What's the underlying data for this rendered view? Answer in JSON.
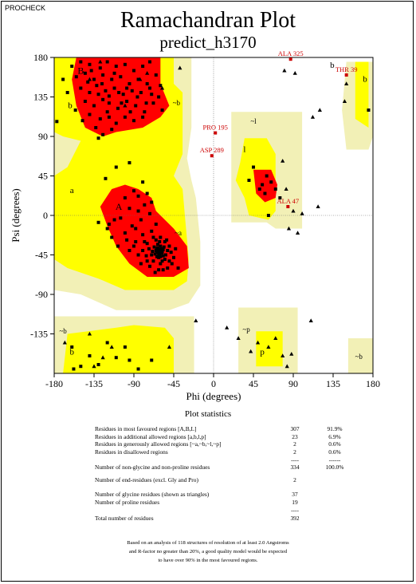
{
  "header": {
    "program": "PROCHECK",
    "title": "Ramachandran Plot",
    "subtitle": "predict_h3170"
  },
  "chart_data": {
    "type": "scatter",
    "title": "Ramachandran Plot",
    "subtitle": "predict_h3170",
    "xlabel": "Phi (degrees)",
    "ylabel": "Psi (degrees)",
    "xlim": [
      -180,
      180
    ],
    "ylim": [
      -180,
      180
    ],
    "x_ticks": [
      "-180",
      "-135",
      "-90",
      "-45",
      "0",
      "45",
      "90",
      "135",
      "180"
    ],
    "y_ticks": [
      "180",
      "135",
      "90",
      "45",
      "0",
      "-45",
      "-90",
      "-135"
    ],
    "colors": {
      "most_favoured": "#ff0000",
      "additional_allowed": "#ffff00",
      "generously_allowed": "#f2f0b6",
      "disallowed": "#ffffff",
      "points": "#000000",
      "outlier_labels": "#cc0000"
    },
    "region_labels": [
      {
        "text": "B",
        "phi": -150,
        "psi": 165
      },
      {
        "text": "b",
        "phi": -162,
        "psi": 126
      },
      {
        "text": "~b",
        "phi": -42,
        "psi": 129
      },
      {
        "text": "b",
        "phi": 134,
        "psi": 172
      },
      {
        "text": "b",
        "phi": 171,
        "psi": 156
      },
      {
        "text": "~l",
        "phi": 45,
        "psi": 108
      },
      {
        "text": "l",
        "phi": 35,
        "psi": 76
      },
      {
        "text": "a",
        "phi": -160,
        "psi": 29
      },
      {
        "text": "A",
        "phi": -107,
        "psi": 10
      },
      {
        "text": "~a",
        "phi": -40,
        "psi": -19
      },
      {
        "text": "~b",
        "phi": -170,
        "psi": -131
      },
      {
        "text": "b",
        "phi": -160,
        "psi": -155
      },
      {
        "text": "~p",
        "phi": 37,
        "psi": -129
      },
      {
        "text": "p",
        "phi": 55,
        "psi": -155
      },
      {
        "text": "~b",
        "phi": 164,
        "psi": -160
      }
    ],
    "outliers": [
      {
        "label": "ALA 325",
        "phi": 87,
        "psi": 178
      },
      {
        "label": "THR 39",
        "phi": 150,
        "psi": 160
      },
      {
        "label": "PRO 195",
        "phi": 2,
        "psi": 94
      },
      {
        "label": "ASP 289",
        "phi": -2,
        "psi": 68
      },
      {
        "label": "ALA 47",
        "phi": 84,
        "psi": 10
      }
    ],
    "series": [
      {
        "name": "Non-glycine residues",
        "marker": "square",
        "points": [
          [
            -160,
            170
          ],
          [
            -150,
            175
          ],
          [
            -140,
            172
          ],
          [
            -128,
            168
          ],
          [
            -120,
            175
          ],
          [
            -110,
            170
          ],
          [
            -100,
            172
          ],
          [
            -90,
            165
          ],
          [
            -80,
            170
          ],
          [
            -72,
            175
          ],
          [
            -155,
            158
          ],
          [
            -145,
            162
          ],
          [
            -135,
            155
          ],
          [
            -125,
            160
          ],
          [
            -115,
            155
          ],
          [
            -105,
            158
          ],
          [
            -95,
            150
          ],
          [
            -85,
            155
          ],
          [
            -75,
            150
          ],
          [
            -65,
            160
          ],
          [
            -150,
            145
          ],
          [
            -140,
            140
          ],
          [
            -132,
            148
          ],
          [
            -122,
            142
          ],
          [
            -112,
            145
          ],
          [
            -102,
            138
          ],
          [
            -92,
            142
          ],
          [
            -82,
            140
          ],
          [
            -72,
            145
          ],
          [
            -62,
            135
          ],
          [
            -145,
            130
          ],
          [
            -135,
            125
          ],
          [
            -125,
            132
          ],
          [
            -118,
            128
          ],
          [
            -108,
            122
          ],
          [
            -98,
            130
          ],
          [
            -88,
            125
          ],
          [
            -78,
            118
          ],
          [
            -68,
            128
          ],
          [
            -58,
            120
          ],
          [
            -140,
            115
          ],
          [
            -128,
            110
          ],
          [
            -118,
            112
          ],
          [
            -110,
            105
          ],
          [
            -100,
            112
          ],
          [
            -90,
            108
          ],
          [
            -80,
            112
          ],
          [
            -115,
            98
          ],
          [
            -125,
            92
          ],
          [
            -130,
            88
          ],
          [
            -138,
            165
          ],
          [
            -126,
            150
          ],
          [
            -112,
            162
          ],
          [
            -98,
            145
          ],
          [
            -86,
            135
          ],
          [
            -142,
            152
          ],
          [
            -130,
            138
          ],
          [
            -120,
            118
          ],
          [
            -104,
            128
          ],
          [
            -94,
            118
          ],
          [
            -165,
            140
          ],
          [
            -170,
            155
          ],
          [
            -156,
            120
          ],
          [
            -148,
            108
          ],
          [
            -133,
            100
          ],
          [
            -70,
            138
          ],
          [
            -60,
            148
          ],
          [
            -76,
            128
          ],
          [
            -107,
            140
          ],
          [
            -118,
            136
          ],
          [
            -177,
            107
          ],
          [
            -95,
            60
          ],
          [
            -110,
            55
          ],
          [
            -122,
            42
          ],
          [
            -80,
            38
          ],
          [
            -100,
            20
          ],
          [
            -95,
            8
          ],
          [
            -105,
            -3
          ],
          [
            -118,
            -10
          ],
          [
            -130,
            -8
          ],
          [
            -85,
            22
          ],
          [
            -90,
            28
          ],
          [
            -75,
            25
          ],
          [
            -78,
            12
          ],
          [
            -70,
            15
          ],
          [
            -85,
            5
          ],
          [
            -72,
            2
          ],
          [
            -82,
            -5
          ],
          [
            -92,
            -12
          ],
          [
            -100,
            -20
          ],
          [
            -65,
            -10
          ],
          [
            -70,
            -18
          ],
          [
            -80,
            -22
          ],
          [
            -88,
            -30
          ],
          [
            -75,
            -32
          ],
          [
            -60,
            -25
          ],
          [
            -55,
            -30
          ],
          [
            -60,
            -35
          ],
          [
            -65,
            -40
          ],
          [
            -70,
            -45
          ],
          [
            -58,
            -42
          ],
          [
            -62,
            -48
          ],
          [
            -68,
            -52
          ],
          [
            -55,
            -50
          ],
          [
            -52,
            -40
          ],
          [
            -64,
            -38
          ],
          [
            -66,
            -44
          ],
          [
            -60,
            -55
          ],
          [
            -57,
            -46
          ],
          [
            -63,
            -33
          ],
          [
            -62,
            -42
          ],
          [
            -59,
            -38
          ],
          [
            -61,
            -45
          ],
          [
            -64,
            -47
          ],
          [
            -56,
            -36
          ],
          [
            -67,
            -36
          ],
          [
            -54,
            -45
          ],
          [
            -69,
            -41
          ],
          [
            -58,
            -52
          ],
          [
            -65,
            -28
          ],
          [
            -73,
            -38
          ],
          [
            -76,
            -46
          ],
          [
            -50,
            -35
          ],
          [
            -48,
            -42
          ],
          [
            -53,
            -28
          ],
          [
            -80,
            -40
          ],
          [
            -85,
            -45
          ],
          [
            -72,
            -58
          ],
          [
            -62,
            -62
          ],
          [
            -95,
            -40
          ],
          [
            -108,
            -35
          ],
          [
            -115,
            -25
          ],
          [
            -120,
            -15
          ],
          [
            -112,
            -5
          ],
          [
            -45,
            -48
          ],
          [
            -40,
            -60
          ],
          [
            -47,
            -55
          ],
          [
            -78,
            -30
          ],
          [
            -88,
            -15
          ],
          [
            -68,
            -25
          ],
          [
            -52,
            -60
          ],
          [
            -57,
            -62
          ],
          [
            -66,
            -65
          ],
          [
            -50,
            -52
          ],
          [
            -43,
            -38
          ],
          [
            -61,
            -30
          ],
          [
            -75,
            -52
          ],
          [
            -82,
            -55
          ],
          [
            -90,
            -35
          ],
          [
            -98,
            -28
          ],
          [
            -61,
            -41
          ],
          [
            -63,
            -40
          ],
          [
            -59,
            -43
          ],
          [
            -60,
            -39
          ],
          [
            -62,
            -44
          ],
          [
            -58,
            -40
          ],
          [
            -64,
            -42
          ],
          [
            -57,
            -39
          ],
          [
            -60,
            -47
          ],
          [
            -63,
            -37
          ],
          [
            40,
            40
          ],
          [
            52,
            30
          ],
          [
            58,
            25
          ],
          [
            60,
            45
          ],
          [
            45,
            55
          ],
          [
            55,
            35
          ],
          [
            65,
            38
          ],
          [
            70,
            30
          ],
          [
            75,
            20
          ],
          [
            62,
            0
          ],
          [
            -160,
            -150
          ],
          [
            -140,
            -160
          ],
          [
            -130,
            -170
          ],
          [
            -100,
            -150
          ],
          [
            -110,
            -162
          ],
          [
            -150,
            -172
          ],
          [
            -120,
            -145
          ],
          [
            -95,
            -165
          ],
          [
            -70,
            -165
          ],
          [
            -85,
            -175
          ],
          [
            -158,
            -175
          ],
          [
            175,
            120
          ]
        ]
      },
      {
        "name": "Glycine residues",
        "marker": "triangle",
        "points": [
          [
            -100,
            125
          ],
          [
            -83,
            155
          ],
          [
            -58,
            145
          ],
          [
            -38,
            168
          ],
          [
            -75,
            162
          ],
          [
            -128,
            175
          ],
          [
            -140,
            155
          ],
          [
            -125,
            -162
          ],
          [
            -115,
            -150
          ],
          [
            -168,
            -145
          ],
          [
            -140,
            -135
          ],
          [
            -135,
            -172
          ],
          [
            -50,
            -150
          ],
          [
            80,
            165
          ],
          [
            120,
            120
          ],
          [
            148,
            130
          ],
          [
            150,
            150
          ],
          [
            92,
            162
          ],
          [
            112,
            112
          ],
          [
            78,
            62
          ],
          [
            82,
            30
          ],
          [
            90,
            5
          ],
          [
            100,
            2
          ],
          [
            118,
            10
          ],
          [
            85,
            -15
          ],
          [
            95,
            -20
          ],
          [
            15,
            -128
          ],
          [
            28,
            -140
          ],
          [
            42,
            -155
          ],
          [
            50,
            -145
          ],
          [
            62,
            -150
          ],
          [
            78,
            -160
          ],
          [
            83,
            -172
          ],
          [
            88,
            -158
          ],
          [
            70,
            -140
          ],
          [
            110,
            -120
          ],
          [
            -20,
            -120
          ]
        ]
      }
    ],
    "statistics": {
      "title": "Plot statistics",
      "rows": [
        {
          "label": "Residues in most favoured regions  [A,B,L]",
          "count": "307",
          "percent": "91.9%"
        },
        {
          "label": "Residues in additional allowed regions  [a,b,l,p]",
          "count": "23",
          "percent": "6.9%"
        },
        {
          "label": "Residues in generously allowed regions  [~a,~b,~l,~p]",
          "count": "2",
          "percent": "0.6%"
        },
        {
          "label": "Residues in disallowed regions",
          "count": "2",
          "percent": "0.6%"
        },
        {
          "label": "",
          "count": "----",
          "percent": "------"
        },
        {
          "label": "Number of non-glycine and non-proline residues",
          "count": "334",
          "percent": "100.0%"
        },
        {
          "label": "Number of end-residues (excl. Gly and Pro)",
          "count": "2",
          "percent": ""
        },
        {
          "label": "Number of glycine residues (shown as triangles)",
          "count": "37",
          "percent": ""
        },
        {
          "label": "Number of proline residues",
          "count": "19",
          "percent": ""
        },
        {
          "label": "",
          "count": "----",
          "percent": ""
        },
        {
          "label": "Total number of residues",
          "count": "392",
          "percent": ""
        }
      ],
      "footnote": [
        "Based on an analysis of 118 structures of resolution of at least 2.0 Angstroms",
        "and R-factor no greater than 20%, a good quality model would be expected",
        "to have over 90% in the most favoured regions."
      ]
    }
  }
}
